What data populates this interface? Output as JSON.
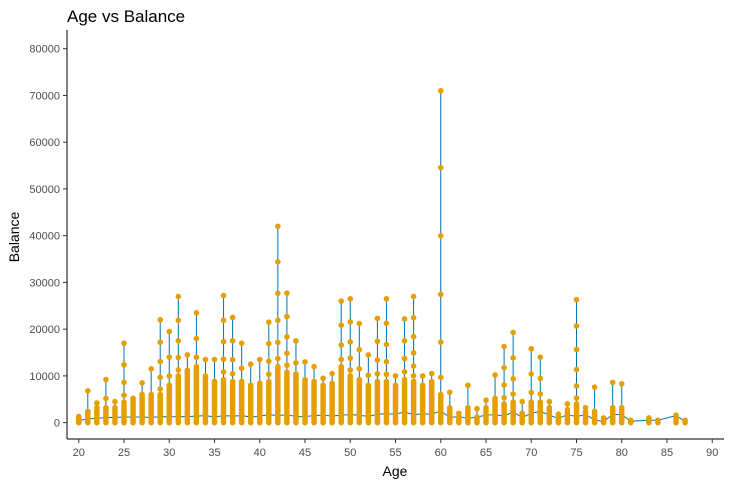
{
  "chart_data": {
    "type": "scatter",
    "title": "Age vs Balance",
    "xlabel": "Age",
    "ylabel": "Balance",
    "xlim": [
      18.7,
      91.3
    ],
    "ylim": [
      -3500,
      84000
    ],
    "xticks": [
      20,
      25,
      30,
      35,
      40,
      45,
      50,
      55,
      60,
      65,
      70,
      75,
      80,
      85,
      90
    ],
    "yticks": [
      0,
      10000,
      20000,
      30000,
      40000,
      50000,
      60000,
      70000,
      80000
    ],
    "grid": false,
    "legend": "none",
    "colors": {
      "points": "#E69F00",
      "line": "#0072B2"
    },
    "series": [
      {
        "x": [
          20,
          21,
          22,
          23,
          24,
          25,
          26,
          27,
          28,
          29,
          30,
          31,
          32,
          33,
          34,
          35,
          36,
          37,
          38,
          39,
          40,
          41,
          42,
          43,
          44,
          45,
          46,
          47,
          48,
          49,
          50,
          51,
          52,
          53,
          54,
          55,
          56,
          57,
          58,
          59,
          60,
          61,
          62,
          63,
          64,
          65,
          66,
          67,
          68,
          69,
          70,
          71,
          72,
          73,
          74,
          75,
          76,
          77,
          78,
          79,
          80,
          81,
          83,
          84,
          86,
          87
        ],
        "max": [
          1300,
          6800,
          4200,
          9200,
          4500,
          17000,
          5500,
          8500,
          11500,
          22000,
          19500,
          27000,
          14500,
          23500,
          13500,
          13500,
          27200,
          22500,
          17000,
          12500,
          13500,
          21500,
          42000,
          27700,
          17500,
          13000,
          12000,
          9500,
          10500,
          26000,
          26500,
          21200,
          14500,
          22300,
          26500,
          10000,
          22200,
          27000,
          10000,
          10500,
          71000,
          6500,
          2000,
          8000,
          3000,
          4800,
          10200,
          16300,
          19300,
          4500,
          15800,
          14000,
          4500,
          1800,
          4000,
          26300,
          3200,
          7600,
          1000,
          8600,
          8300,
          500,
          1000,
          500,
          1600,
          500
        ],
        "mean": [
          400,
          800,
          900,
          1100,
          1100,
          1200,
          1200,
          1200,
          1100,
          1300,
          1200,
          1300,
          1300,
          1400,
          1500,
          1200,
          1500,
          1400,
          1500,
          1200,
          1400,
          1700,
          1500,
          1700,
          1300,
          1300,
          1500,
          1600,
          1400,
          1600,
          1700,
          1600,
          1300,
          1800,
          1900,
          1800,
          2300,
          1700,
          1900,
          1800,
          2500,
          1100,
          1300,
          900,
          1200,
          1600,
          1700,
          1400,
          2300,
          1100,
          2000,
          2400,
          1600,
          900,
          1700,
          1300,
          1700,
          600,
          200,
          1800,
          1700,
          300,
          500,
          500,
          1500,
          300
        ],
        "upper": [
          1200,
          2500,
          3500,
          3200,
          3500,
          4500,
          5500,
          6000,
          6000,
          6000,
          8000,
          10000,
          11500,
          12000,
          10000,
          9000,
          9500,
          9000,
          9000,
          8000,
          8500,
          9000,
          12000,
          11000,
          10500,
          9500,
          9000,
          8000,
          8500,
          12000,
          10000,
          9500,
          8000,
          9000,
          9000,
          8000,
          9500,
          9000,
          8000,
          9000,
          6000,
          3500,
          1500,
          3500,
          1500,
          3500,
          5500,
          4000,
          4500,
          2000,
          4500,
          4500,
          3500,
          1500,
          3000,
          4000,
          2500,
          2500,
          800,
          3500,
          3500,
          400,
          800,
          300,
          1400,
          300
        ]
      }
    ]
  }
}
